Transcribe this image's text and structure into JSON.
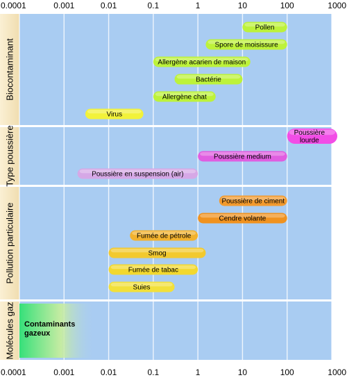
{
  "chart_data": {
    "type": "bar",
    "orientation": "horizontal",
    "x_scale": "log",
    "xlim": [
      0.0001,
      1000
    ],
    "x_ticks": [
      "0.0001",
      "0.001",
      "0.01",
      "0.1",
      "1",
      "10",
      "100",
      "1000"
    ],
    "grid": true,
    "groups": [
      {
        "name": "Biocontaminant",
        "items": [
          {
            "label": "Pollen",
            "min": 10,
            "max": 100,
            "color": "#bdf23a"
          },
          {
            "label": "Spore de moisissure",
            "min": 1.5,
            "max": 100,
            "color": "#bdf23a"
          },
          {
            "label": "Allergène acarien de maison",
            "min": 0.1,
            "max": 15,
            "color": "#bdf23a"
          },
          {
            "label": "Bactérie",
            "min": 0.3,
            "max": 10,
            "color": "#bdf23a"
          },
          {
            "label": "Allergène chat",
            "min": 0.1,
            "max": 2.5,
            "color": "#bdf23a"
          },
          {
            "label": "Virus",
            "min": 0.003,
            "max": 0.06,
            "color": "#f2f23a"
          }
        ]
      },
      {
        "name": "Type poussière",
        "items": [
          {
            "label": "Poussière lourde",
            "min": 100,
            "max": 1000,
            "color": "#f24de6"
          },
          {
            "label": "Poussière medium",
            "min": 1,
            "max": 100,
            "color": "#e05ee0"
          },
          {
            "label": "Poussière en suspension (air)",
            "min": 0.002,
            "max": 1,
            "color": "#d6a8e6"
          }
        ]
      },
      {
        "name": "Pollution particulaire",
        "items": [
          {
            "label": "Poussière de ciment",
            "min": 3,
            "max": 100,
            "color": "#f29a2e"
          },
          {
            "label": "Cendre volante",
            "min": 1,
            "max": 100,
            "color": "#f0921f"
          },
          {
            "label": "Fumée de pétrole",
            "min": 0.03,
            "max": 1,
            "color": "#f2b22e"
          },
          {
            "label": "Smog",
            "min": 0.01,
            "max": 1.5,
            "color": "#f2c92e"
          },
          {
            "label": "Fumée de tabac",
            "min": 0.01,
            "max": 1,
            "color": "#f2d82e"
          },
          {
            "label": "Suies",
            "min": 0.01,
            "max": 0.3,
            "color": "#f2e03a"
          }
        ]
      },
      {
        "name": "Molécules gaz",
        "items": [
          {
            "label": "Contaminants gazeux",
            "min": 0.0001,
            "max": 0.005,
            "color": "#3ee07a"
          }
        ]
      }
    ]
  }
}
